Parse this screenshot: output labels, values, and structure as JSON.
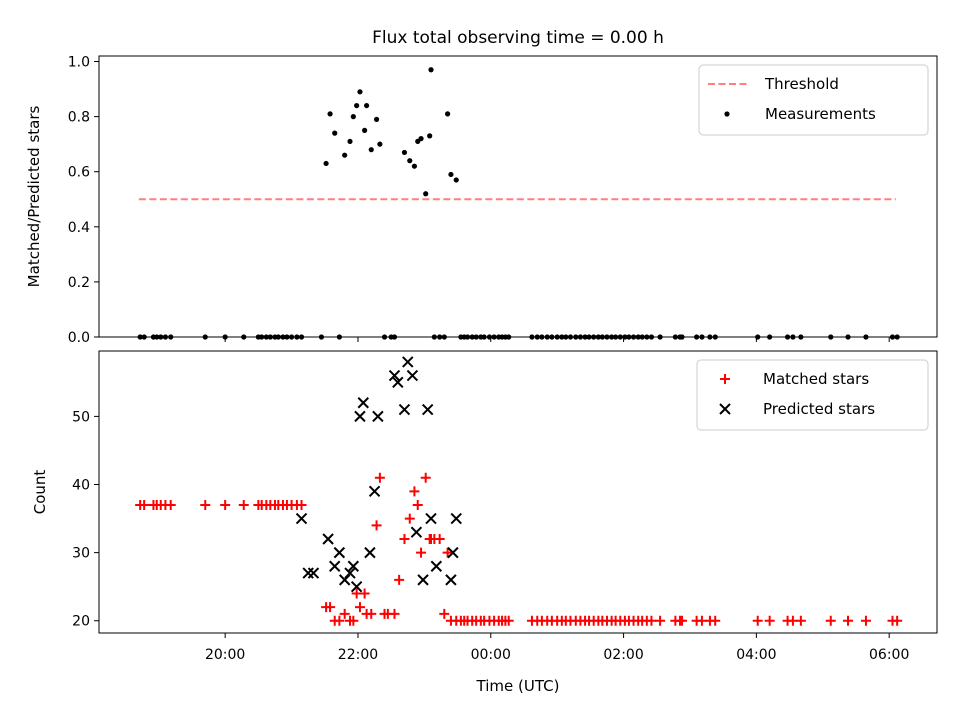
{
  "title": "Flux total observing time = 0.00 h",
  "chart_data": [
    {
      "type": "scatter",
      "ylabel": "Matched/Predicted stars",
      "xlim": [
        18.1,
        30.72
      ],
      "ylim": [
        0,
        1.02
      ],
      "yticks": [
        "0.0",
        "0.2",
        "0.4",
        "0.6",
        "0.8",
        "1.0"
      ],
      "legend_position": "top-right",
      "threshold": {
        "name": "Threshold",
        "value": 0.5,
        "x_range": [
          18.7,
          30.1
        ],
        "color": "#ff7f7f",
        "style": "dashed"
      },
      "series": [
        {
          "name": "Measurements",
          "color": "#000000",
          "x": [
            18.72,
            18.78,
            18.92,
            18.97,
            19.03,
            19.1,
            19.18,
            19.7,
            20.0,
            20.28,
            20.5,
            20.55,
            20.62,
            20.68,
            20.75,
            20.8,
            20.87,
            20.93,
            21.0,
            21.08,
            21.15,
            21.45,
            21.52,
            21.58,
            21.65,
            21.72,
            21.8,
            21.88,
            21.93,
            21.98,
            22.03,
            22.1,
            22.13,
            22.2,
            22.28,
            22.33,
            22.4,
            22.5,
            22.55,
            22.7,
            22.78,
            22.85,
            22.9,
            22.95,
            23.02,
            23.08,
            23.1,
            23.15,
            23.23,
            23.3,
            23.35,
            23.4,
            23.48,
            23.55,
            23.6,
            23.65,
            23.72,
            23.78,
            23.85,
            23.9,
            23.98,
            24.05,
            24.12,
            24.17,
            24.22,
            24.27,
            24.62,
            24.7,
            24.77,
            24.85,
            24.92,
            25.0,
            25.07,
            25.13,
            25.2,
            25.28,
            25.35,
            25.42,
            25.48,
            25.55,
            25.62,
            25.68,
            25.75,
            25.82,
            25.88,
            25.95,
            26.02,
            26.08,
            26.15,
            26.22,
            26.28,
            26.35,
            26.42,
            26.55,
            26.78,
            26.85,
            26.88,
            27.1,
            27.18,
            27.3,
            27.38,
            28.02,
            28.2,
            28.47,
            28.55,
            28.67,
            29.12,
            29.38,
            29.65,
            30.05,
            30.12
          ],
          "y": [
            0,
            0,
            0,
            0,
            0,
            0,
            0,
            0,
            0,
            0,
            0,
            0,
            0,
            0,
            0,
            0,
            0,
            0,
            0,
            0,
            0,
            0,
            0.63,
            0.81,
            0.74,
            0,
            0.66,
            0.71,
            0.8,
            0.84,
            0.89,
            0.75,
            0.84,
            0.68,
            0.79,
            0.7,
            0,
            0,
            0,
            0.67,
            0.64,
            0.62,
            0.71,
            0.72,
            0.52,
            0.73,
            0.97,
            0,
            0,
            0,
            0.81,
            0.59,
            0.57,
            0,
            0,
            0,
            0,
            0,
            0,
            0,
            0,
            0,
            0,
            0,
            0,
            0,
            0,
            0,
            0,
            0,
            0,
            0,
            0,
            0,
            0,
            0,
            0,
            0,
            0,
            0,
            0,
            0,
            0,
            0,
            0,
            0,
            0,
            0,
            0,
            0,
            0,
            0,
            0,
            0,
            0,
            0,
            0,
            0,
            0,
            0,
            0,
            0,
            0,
            0,
            0,
            0,
            0,
            0,
            0,
            0,
            0
          ]
        }
      ]
    },
    {
      "type": "scatter",
      "xlabel": "Time (UTC)",
      "ylabel": "Count",
      "xlim": [
        18.1,
        30.72
      ],
      "ylim": [
        18.2,
        59.6
      ],
      "xticks": [
        "20:00",
        "22:00",
        "00:00",
        "02:00",
        "04:00",
        "06:00"
      ],
      "yticks": [
        "20",
        "30",
        "40",
        "50"
      ],
      "legend_position": "top-right",
      "series": [
        {
          "name": "Matched stars",
          "marker": "plus",
          "color": "#ff0000",
          "x": [
            18.72,
            18.78,
            18.92,
            18.97,
            19.03,
            19.1,
            19.18,
            19.7,
            20.0,
            20.28,
            20.5,
            20.55,
            20.62,
            20.68,
            20.75,
            20.8,
            20.87,
            20.93,
            21.0,
            21.08,
            21.15,
            21.52,
            21.58,
            21.65,
            21.72,
            21.8,
            21.88,
            21.93,
            21.98,
            22.03,
            22.1,
            22.13,
            22.2,
            22.28,
            22.33,
            22.4,
            22.45,
            22.55,
            22.62,
            22.7,
            22.78,
            22.85,
            22.9,
            22.95,
            23.02,
            23.08,
            23.1,
            23.15,
            23.23,
            23.3,
            23.35,
            23.4,
            23.48,
            23.55,
            23.6,
            23.65,
            23.72,
            23.78,
            23.85,
            23.9,
            23.98,
            24.05,
            24.12,
            24.17,
            24.22,
            24.27,
            24.62,
            24.7,
            24.77,
            24.85,
            24.92,
            25.0,
            25.07,
            25.13,
            25.2,
            25.28,
            25.35,
            25.42,
            25.48,
            25.55,
            25.62,
            25.68,
            25.75,
            25.82,
            25.88,
            25.95,
            26.02,
            26.08,
            26.15,
            26.22,
            26.28,
            26.35,
            26.42,
            26.55,
            26.78,
            26.85,
            26.88,
            27.1,
            27.18,
            27.3,
            27.38,
            28.02,
            28.2,
            28.47,
            28.55,
            28.67,
            29.12,
            29.38,
            29.65,
            30.05,
            30.12
          ],
          "y": [
            37,
            37,
            37,
            37,
            37,
            37,
            37,
            37,
            37,
            37,
            37,
            37,
            37,
            37,
            37,
            37,
            37,
            37,
            37,
            37,
            37,
            22,
            22,
            20,
            20,
            21,
            20,
            20,
            24,
            22,
            24,
            21,
            21,
            34,
            41,
            21,
            21,
            21,
            26,
            32,
            35,
            39,
            37,
            30,
            41,
            32,
            32,
            32,
            32,
            21,
            30,
            20,
            20,
            20,
            20,
            20,
            20,
            20,
            20,
            20,
            20,
            20,
            20,
            20,
            20,
            20,
            20,
            20,
            20,
            20,
            20,
            20,
            20,
            20,
            20,
            20,
            20,
            20,
            20,
            20,
            20,
            20,
            20,
            20,
            20,
            20,
            20,
            20,
            20,
            20,
            20,
            20,
            20,
            20,
            20,
            20,
            20,
            20,
            20,
            20,
            20,
            20,
            20,
            20,
            20,
            20,
            20,
            20,
            20,
            20,
            20
          ]
        },
        {
          "name": "Predicted stars",
          "marker": "x",
          "color": "#000000",
          "x": [
            21.15,
            21.25,
            21.33,
            21.55,
            21.65,
            21.72,
            21.8,
            21.88,
            21.93,
            21.98,
            22.03,
            22.08,
            22.18,
            22.25,
            22.3,
            22.55,
            22.6,
            22.7,
            22.75,
            22.82,
            22.88,
            22.98,
            23.05,
            23.1,
            23.18,
            23.4,
            23.43,
            23.48
          ],
          "y": [
            35,
            27,
            27,
            32,
            28,
            30,
            26,
            27,
            28,
            25,
            50,
            52,
            30,
            39,
            50,
            56,
            55,
            51,
            58,
            56,
            33,
            26,
            51,
            35,
            28,
            26,
            30,
            35
          ]
        }
      ]
    }
  ]
}
